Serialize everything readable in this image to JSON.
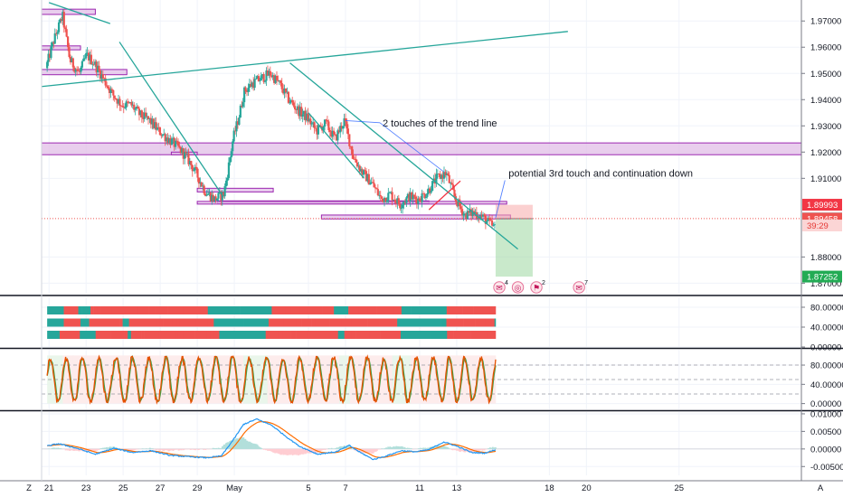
{
  "chart_data": {
    "type": "candlestick",
    "panes": [
      {
        "name": "price",
        "ylim": [
          1.866,
          1.978
        ],
        "y_ticks": [
          {
            "value": 1.97,
            "label": "1.97000"
          },
          {
            "value": 1.96,
            "label": "1.96000"
          },
          {
            "value": 1.95,
            "label": "1.95000"
          },
          {
            "value": 1.94,
            "label": "1.94000"
          },
          {
            "value": 1.93,
            "label": "1.93000"
          },
          {
            "value": 1.92,
            "label": "1.92000"
          },
          {
            "value": 1.91,
            "label": "1.91000"
          },
          {
            "value": 1.88,
            "label": "1.88000"
          },
          {
            "value": 1.87,
            "label": "1.87000"
          }
        ],
        "anchors": [
          [
            20.9,
            1.952
          ],
          [
            21.3,
            1.962
          ],
          [
            21.8,
            1.972
          ],
          [
            22.2,
            1.955
          ],
          [
            22.7,
            1.95
          ],
          [
            23.1,
            1.957
          ],
          [
            23.5,
            1.954
          ],
          [
            24.0,
            1.948
          ],
          [
            24.5,
            1.942
          ],
          [
            25.0,
            1.938
          ],
          [
            25.5,
            1.938
          ],
          [
            26.0,
            1.934
          ],
          [
            26.5,
            1.932
          ],
          [
            27.0,
            1.928
          ],
          [
            27.5,
            1.925
          ],
          [
            28.0,
            1.922
          ],
          [
            28.5,
            1.918
          ],
          [
            29.0,
            1.912
          ],
          [
            29.5,
            1.905
          ],
          [
            30.0,
            1.902
          ],
          [
            30.5,
            1.904
          ],
          [
            30.7,
            1.912
          ],
          [
            31.0,
            1.925
          ],
          [
            31.3,
            1.933
          ],
          [
            31.6,
            1.943
          ],
          [
            32.0,
            1.946
          ],
          [
            32.5,
            1.948
          ],
          [
            33.0,
            1.95
          ],
          [
            33.5,
            1.946
          ],
          [
            34.0,
            1.94
          ],
          [
            34.5,
            1.936
          ],
          [
            35.0,
            1.933
          ],
          [
            35.5,
            1.928
          ],
          [
            36.0,
            1.931
          ],
          [
            36.5,
            1.925
          ],
          [
            37.0,
            1.932
          ],
          [
            37.5,
            1.918
          ],
          [
            38.0,
            1.912
          ],
          [
            38.5,
            1.908
          ],
          [
            39.0,
            1.902
          ],
          [
            39.5,
            1.904
          ],
          [
            40.0,
            1.9
          ],
          [
            40.5,
            1.903
          ],
          [
            41.0,
            1.902
          ],
          [
            41.5,
            1.905
          ],
          [
            42.0,
            1.91
          ],
          [
            42.5,
            1.912
          ],
          [
            43.0,
            1.902
          ],
          [
            43.5,
            1.896
          ],
          [
            44.0,
            1.897
          ],
          [
            44.5,
            1.895
          ],
          [
            44.8,
            1.893
          ],
          [
            45.1,
            1.891
          ]
        ],
        "lines": [
          {
            "name": "rising trend line",
            "points": [
              [
                20.6,
                1.945
              ],
              [
                49.0,
                1.966
              ]
            ],
            "color": "#26a69a"
          },
          {
            "name": "trend line 1",
            "points": [
              [
                24.8,
                1.962
              ],
              [
                30.4,
                1.903
              ]
            ],
            "color": "#26a69a"
          },
          {
            "name": "trend line 2",
            "points": [
              [
                34.0,
                1.954
              ],
              [
                46.3,
                1.883
              ]
            ],
            "color": "#26a69a"
          },
          {
            "name": "channel line",
            "points": [
              [
                35.0,
                1.935
              ],
              [
                38.0,
                1.91
              ]
            ],
            "color": "#26a69a"
          },
          {
            "name": "top-left short line",
            "points": [
              [
                21.0,
                1.977
              ],
              [
                24.3,
                1.969
              ]
            ],
            "color": "#26a69a"
          },
          {
            "name": "red trend line",
            "points": [
              [
                41.5,
                1.898
              ],
              [
                43.2,
                1.909
              ]
            ],
            "color": "#f23645"
          }
        ],
        "zones": [
          {
            "x1": 20.6,
            "x2": 23.5,
            "y1": 1.9725,
            "y2": 1.9745
          },
          {
            "x1": 20.6,
            "x2": 22.7,
            "y1": 1.959,
            "y2": 1.9605
          },
          {
            "x1": 20.6,
            "x2": 25.2,
            "y1": 1.9495,
            "y2": 1.9515
          },
          {
            "x1": 20.6,
            "x2": 61.6,
            "y1": 1.919,
            "y2": 1.9235
          },
          {
            "x1": 27.6,
            "x2": 29.0,
            "y1": 1.919,
            "y2": 1.92
          },
          {
            "x1": 29.0,
            "x2": 33.1,
            "y1": 1.9048,
            "y2": 1.9062
          },
          {
            "x1": 30.1,
            "x2": 41.5,
            "y1": 1.9004,
            "y2": 1.9014
          },
          {
            "x1": 29.0,
            "x2": 45.7,
            "y1": 1.9005,
            "y2": 1.9012
          },
          {
            "x1": 35.7,
            "x2": 45.9,
            "y1": 1.8945,
            "y2": 1.896
          }
        ],
        "position": {
          "x1": 45.1,
          "x2": 47.1,
          "entry": 1.8946,
          "stop": 1.8999,
          "target": 1.8725
        },
        "price_labels": [
          {
            "value": 1.89993,
            "label": "1.89993",
            "color": "#f23645"
          },
          {
            "value": 1.89466,
            "label": "1.89466",
            "color": "#4a4f5c"
          },
          {
            "value": 1.89458,
            "label": "1.89458",
            "color": "#ef5350"
          },
          {
            "value": 1.892,
            "label": "39:29",
            "color": "#fbd5d5"
          },
          {
            "value": 1.87252,
            "label": "1.87252",
            "color": "#22ab54"
          }
        ],
        "current_price": 1.89466,
        "annotations": [
          {
            "text": "2 touches of the trend line",
            "x": 39.0,
            "y": 1.9312,
            "arrows": [
              [
                37.0,
                1.932
              ],
              [
                42.3,
                1.9125
              ]
            ]
          },
          {
            "text": "potential 3rd touch and continuation down",
            "x": 45.8,
            "y": 1.912,
            "arrows": [
              [
                45.1,
                1.895
              ]
            ]
          }
        ],
        "events": [
          {
            "x": 45.3,
            "glyph": "✉",
            "badge": "4"
          },
          {
            "x": 46.3,
            "glyph": "◎",
            "badge": ""
          },
          {
            "x": 47.3,
            "glyph": "⚑",
            "badge": "2"
          },
          {
            "x": 49.6,
            "glyph": "✉",
            "badge": "7"
          }
        ]
      },
      {
        "name": "trend strips",
        "ylim": [
          0,
          100
        ],
        "y_ticks": [
          {
            "value": 80,
            "label": "80.00000"
          },
          {
            "value": 40,
            "label": "40.00000"
          },
          {
            "value": 0,
            "label": "0.00000"
          }
        ],
        "rows": 3,
        "colors": [
          "#ef5350",
          "#26a69a"
        ]
      },
      {
        "name": "stochastic",
        "ylim": [
          -12,
          112
        ],
        "y_ticks": [
          {
            "value": 80,
            "label": "80.00000"
          },
          {
            "value": 40,
            "label": "40.00000"
          },
          {
            "value": 0,
            "label": "0.00000"
          }
        ],
        "levels": [
          80,
          50,
          20
        ],
        "series": [
          {
            "line": "K",
            "color": "#e65100"
          },
          {
            "line": "D",
            "color": "#43a047"
          }
        ]
      },
      {
        "name": "macd",
        "ylim": [
          -0.0075,
          0.0105
        ],
        "y_ticks": [
          {
            "value": 0.01,
            "label": "0.01000"
          },
          {
            "value": 0.005,
            "label": "0.00500"
          },
          {
            "value": 0,
            "label": "0.00000"
          },
          {
            "value": -0.005,
            "label": "-0.00500"
          }
        ],
        "anchors": [
          [
            20.6,
            0.0005
          ],
          [
            21.5,
            0.0015
          ],
          [
            22.5,
            0.0002
          ],
          [
            23.5,
            -0.0015
          ],
          [
            24.5,
            0.0002
          ],
          [
            25.5,
            -0.001
          ],
          [
            26.5,
            -0.0005
          ],
          [
            27.5,
            -0.0018
          ],
          [
            28.5,
            -0.0022
          ],
          [
            29.5,
            -0.0025
          ],
          [
            30.3,
            -0.002
          ],
          [
            31.0,
            0.003
          ],
          [
            31.5,
            0.007
          ],
          [
            32.2,
            0.0085
          ],
          [
            33.0,
            0.0068
          ],
          [
            33.8,
            0.0035
          ],
          [
            34.5,
            0.0008
          ],
          [
            35.5,
            -0.0015
          ],
          [
            36.5,
            -0.0008
          ],
          [
            37.2,
            0.001
          ],
          [
            37.8,
            -0.001
          ],
          [
            38.5,
            -0.003
          ],
          [
            39.2,
            -0.002
          ],
          [
            40.0,
            -0.0005
          ],
          [
            40.8,
            -0.0008
          ],
          [
            41.5,
            -0.0002
          ],
          [
            42.3,
            0.002
          ],
          [
            43.0,
            0.0008
          ],
          [
            43.8,
            -0.001
          ],
          [
            44.5,
            -0.0012
          ],
          [
            45.1,
            -0.0002
          ]
        ],
        "series": [
          {
            "line": "MACD",
            "color": "#2196f3"
          },
          {
            "line": "Signal",
            "color": "#ff6d00"
          }
        ]
      }
    ],
    "x_axis": {
      "xlim": [
        20.6,
        61.6
      ],
      "ticks": [
        {
          "value": 21,
          "label": "21"
        },
        {
          "value": 23,
          "label": "23"
        },
        {
          "value": 25,
          "label": "25"
        },
        {
          "value": 27,
          "label": "27"
        },
        {
          "value": 29,
          "label": "29"
        },
        {
          "value": 31,
          "label": "May"
        },
        {
          "value": 35,
          "label": "5"
        },
        {
          "value": 37,
          "label": "7"
        },
        {
          "value": 41,
          "label": "11"
        },
        {
          "value": 43,
          "label": "13"
        },
        {
          "value": 48,
          "label": "18"
        },
        {
          "value": 50,
          "label": "20"
        },
        {
          "value": 55,
          "label": "25"
        }
      ]
    },
    "corner_left": "Z",
    "corner_right": "A"
  }
}
